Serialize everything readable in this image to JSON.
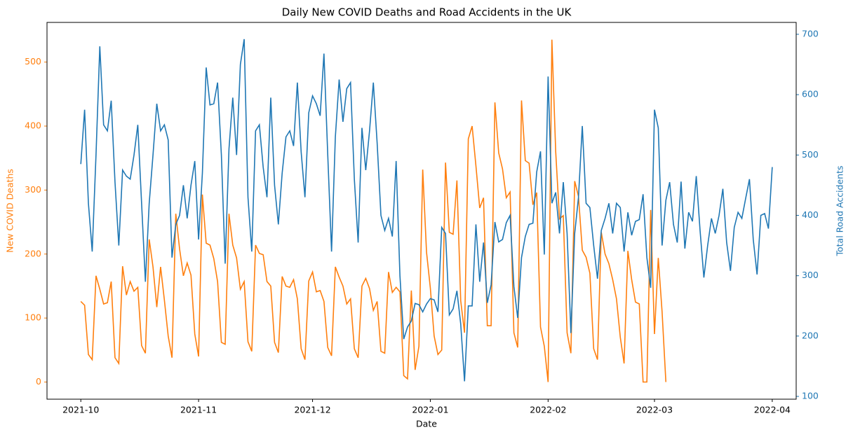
{
  "chart_data": {
    "type": "line",
    "title": "Daily New COVID Deaths and Road Accidents in the UK",
    "xlabel": "Date",
    "ylabel": "New COVID Deaths",
    "y2label": "Total Road Accidents",
    "x": [
      0,
      1,
      2,
      3,
      4,
      5,
      6,
      7,
      8,
      9,
      10,
      11,
      12,
      13,
      14,
      15,
      16,
      17,
      18,
      19,
      20,
      21,
      22,
      23,
      24,
      25,
      26,
      27,
      28,
      29,
      30,
      31,
      32,
      33,
      34,
      35,
      36,
      37,
      38,
      39,
      40,
      41,
      42,
      43,
      44,
      45,
      46,
      47,
      48,
      49,
      50,
      51,
      52,
      53,
      54,
      55,
      56,
      57,
      58,
      59,
      60,
      61,
      62,
      63,
      64,
      65,
      66,
      67,
      68,
      69,
      70,
      71,
      72,
      73,
      74,
      75,
      76,
      77,
      78,
      79,
      80,
      81,
      82,
      83,
      84,
      85,
      86,
      87,
      88,
      89,
      90,
      91,
      92,
      93,
      94,
      95,
      96,
      97,
      98,
      99,
      100,
      101,
      102,
      103,
      104,
      105,
      106,
      107,
      108,
      109,
      110,
      111,
      112,
      113,
      114,
      115,
      116,
      117,
      118,
      119,
      120,
      121,
      122,
      123,
      124,
      125,
      126,
      127,
      128,
      129,
      130,
      131,
      132,
      133,
      134,
      135,
      136,
      137,
      138,
      139,
      140,
      141,
      142,
      143,
      144,
      145,
      146,
      147,
      148,
      149,
      150,
      151,
      152,
      153,
      154,
      155,
      156,
      157,
      158,
      159,
      160,
      161,
      162,
      163,
      164,
      165,
      166,
      167,
      168,
      169,
      170,
      171,
      172,
      173,
      174,
      175,
      176,
      177,
      178,
      179,
      180,
      181,
      182
    ],
    "xlim": [
      -8.9,
      188.3
    ],
    "xticks": [
      {
        "value": 0,
        "label": "2021-10"
      },
      {
        "value": 31,
        "label": "2021-11"
      },
      {
        "value": 61,
        "label": "2021-12"
      },
      {
        "value": 92,
        "label": "2022-01"
      },
      {
        "value": 123,
        "label": "2022-02"
      },
      {
        "value": 151,
        "label": "2022-03"
      },
      {
        "value": 182,
        "label": "2022-04"
      }
    ],
    "ylim": [
      -26.8,
      562
    ],
    "yticks": [
      0,
      100,
      200,
      300,
      400,
      500
    ],
    "y2lim": [
      95.4,
      719.7
    ],
    "y2ticks": [
      100,
      200,
      300,
      400,
      500,
      600,
      700
    ],
    "series": [
      {
        "name": "New COVID Deaths",
        "color": "#ff7f0e",
        "values": [
          126,
          120,
          43,
          35,
          166,
          145,
          122,
          124,
          157,
          38,
          29,
          181,
          136,
          157,
          142,
          148,
          57,
          45,
          223,
          180,
          117,
          180,
          128,
          72,
          38,
          263,
          208,
          166,
          186,
          167,
          75,
          40,
          293,
          217,
          214,
          193,
          157,
          62,
          59,
          263,
          214,
          194,
          145,
          157,
          63,
          48,
          214,
          201,
          199,
          157,
          150,
          62,
          46,
          165,
          150,
          148,
          160,
          130,
          52,
          35,
          158,
          172,
          141,
          143,
          126,
          54,
          41,
          180,
          164,
          150,
          122,
          130,
          52,
          38,
          150,
          162,
          146,
          112,
          126,
          48,
          45,
          172,
          140,
          148,
          141,
          10,
          5,
          143,
          19,
          56,
          332,
          203,
          147,
          72,
          43,
          50,
          343,
          234,
          231,
          315,
          127,
          77,
          380,
          400,
          338,
          272,
          288,
          88,
          88,
          437,
          358,
          333,
          288,
          297,
          77,
          54,
          440,
          346,
          342,
          277,
          296,
          86,
          56,
          0,
          535,
          360,
          255,
          260,
          77,
          45,
          314,
          290,
          206,
          195,
          170,
          52,
          35,
          234,
          200,
          185,
          160,
          130,
          70,
          29,
          205,
          160,
          125,
          122,
          0,
          0,
          269,
          75,
          194,
          110,
          0,
          null,
          null,
          null,
          null,
          null,
          null,
          null,
          null,
          null,
          null,
          null,
          null,
          null,
          null,
          null,
          null,
          null,
          null,
          null,
          null,
          null,
          null,
          null,
          null,
          null,
          null,
          null,
          null
        ]
      },
      {
        "name": "Total Road Accidents",
        "color": "#1f77b4",
        "axis": "y2",
        "values": [
          485,
          575,
          420,
          340,
          500,
          680,
          550,
          540,
          590,
          455,
          350,
          475,
          465,
          460,
          500,
          550,
          420,
          290,
          420,
          500,
          585,
          540,
          550,
          525,
          330,
          385,
          400,
          450,
          395,
          450,
          490,
          360,
          470,
          645,
          583,
          585,
          620,
          500,
          320,
          510,
          595,
          500,
          650,
          692,
          430,
          340,
          540,
          550,
          480,
          430,
          595,
          450,
          385,
          470,
          530,
          540,
          515,
          620,
          505,
          430,
          570,
          598,
          585,
          565,
          668,
          500,
          340,
          530,
          625,
          555,
          610,
          620,
          460,
          355,
          545,
          475,
          540,
          620,
          520,
          400,
          375,
          395,
          365,
          490,
          300,
          195,
          215,
          225,
          254,
          252,
          240,
          253,
          262,
          260,
          240,
          380,
          370,
          235,
          245,
          275,
          220,
          125,
          250,
          250,
          385,
          290,
          355,
          255,
          285,
          389,
          356,
          360,
          388,
          400,
          282,
          230,
          330,
          365,
          385,
          387,
          472,
          506,
          335,
          630,
          420,
          438,
          370,
          455,
          370,
          205,
          370,
          430,
          548,
          420,
          413,
          350,
          295,
          375,
          395,
          420,
          370,
          420,
          413,
          340,
          405,
          367,
          390,
          393,
          435,
          330,
          280,
          575,
          545,
          350,
          425,
          455,
          385,
          355,
          456,
          345,
          405,
          390,
          465,
          375,
          297,
          350,
          395,
          370,
          400,
          444,
          355,
          308,
          380,
          405,
          395,
          428,
          460,
          360,
          302,
          400,
          403,
          378,
          480
        ]
      }
    ]
  }
}
